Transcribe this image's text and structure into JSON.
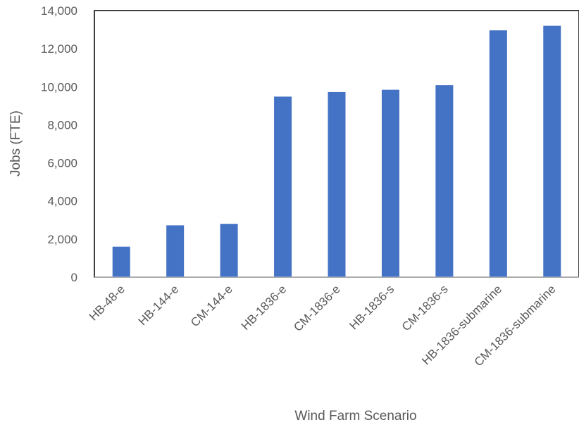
{
  "chart_data": {
    "type": "bar",
    "title": "",
    "xlabel": "Wind Farm Scenario",
    "ylabel": "Jobs (FTE)",
    "ylim": [
      0,
      14000
    ],
    "yticks": [
      0,
      2000,
      4000,
      6000,
      8000,
      10000,
      12000,
      14000
    ],
    "ytick_labels": [
      "0",
      "2,000",
      "4,000",
      "6,000",
      "8,000",
      "10,000",
      "12,000",
      "14,000"
    ],
    "grid": false,
    "legend": "none",
    "bar_color": "#4472C4",
    "categories": [
      "HB-48-e",
      "HB-144-e",
      "CM-144-e",
      "HB-1836-e",
      "CM-1836-e",
      "HB-1836-s",
      "CM-1836-s",
      "HB-1836-submarine",
      "CM-1836-submarine"
    ],
    "values": [
      1600,
      2720,
      2800,
      9480,
      9720,
      9840,
      10080,
      12960,
      13200
    ]
  }
}
